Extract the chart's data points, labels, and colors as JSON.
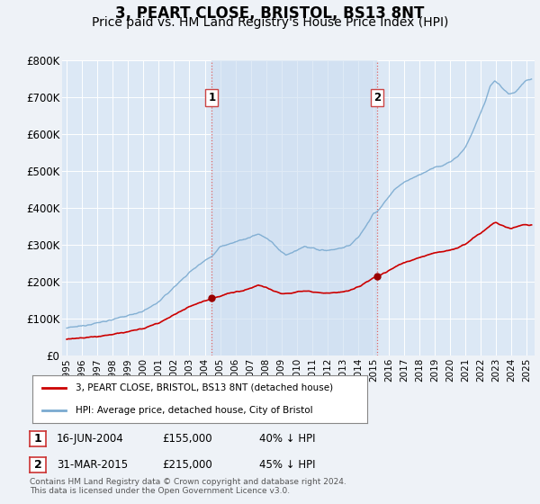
{
  "title": "3, PEART CLOSE, BRISTOL, BS13 8NT",
  "subtitle": "Price paid vs. HM Land Registry's House Price Index (HPI)",
  "title_fontsize": 12,
  "subtitle_fontsize": 10,
  "background_color": "#eef2f7",
  "plot_bg_color": "#dce8f5",
  "plot_bg_shaded": "#ccddf0",
  "red_line_color": "#cc0000",
  "blue_line_color": "#7aaad0",
  "transaction1": {
    "date_x": 2004.46,
    "price": 155000,
    "label": "1"
  },
  "transaction2": {
    "date_x": 2015.25,
    "price": 215000,
    "label": "2"
  },
  "dashed_color": "#dd6666",
  "ylim": [
    0,
    800000
  ],
  "xlim_start": 1994.7,
  "xlim_end": 2025.5,
  "yticks": [
    0,
    100000,
    200000,
    300000,
    400000,
    500000,
    600000,
    700000,
    800000
  ],
  "ytick_labels": [
    "£0",
    "£100K",
    "£200K",
    "£300K",
    "£400K",
    "£500K",
    "£600K",
    "£700K",
    "£800K"
  ],
  "xtick_years": [
    1995,
    1996,
    1997,
    1998,
    1999,
    2000,
    2001,
    2002,
    2003,
    2004,
    2005,
    2006,
    2007,
    2008,
    2009,
    2010,
    2011,
    2012,
    2013,
    2014,
    2015,
    2016,
    2017,
    2018,
    2019,
    2020,
    2021,
    2022,
    2023,
    2024,
    2025
  ],
  "legend_label_red": "3, PEART CLOSE, BRISTOL, BS13 8NT (detached house)",
  "legend_label_blue": "HPI: Average price, detached house, City of Bristol",
  "footnote": "Contains HM Land Registry data © Crown copyright and database right 2024.\nThis data is licensed under the Open Government Licence v3.0.",
  "table_rows": [
    {
      "num": "1",
      "date": "16-JUN-2004",
      "price": "£155,000",
      "pct": "40% ↓ HPI"
    },
    {
      "num": "2",
      "date": "31-MAR-2015",
      "price": "£215,000",
      "pct": "45% ↓ HPI"
    }
  ]
}
